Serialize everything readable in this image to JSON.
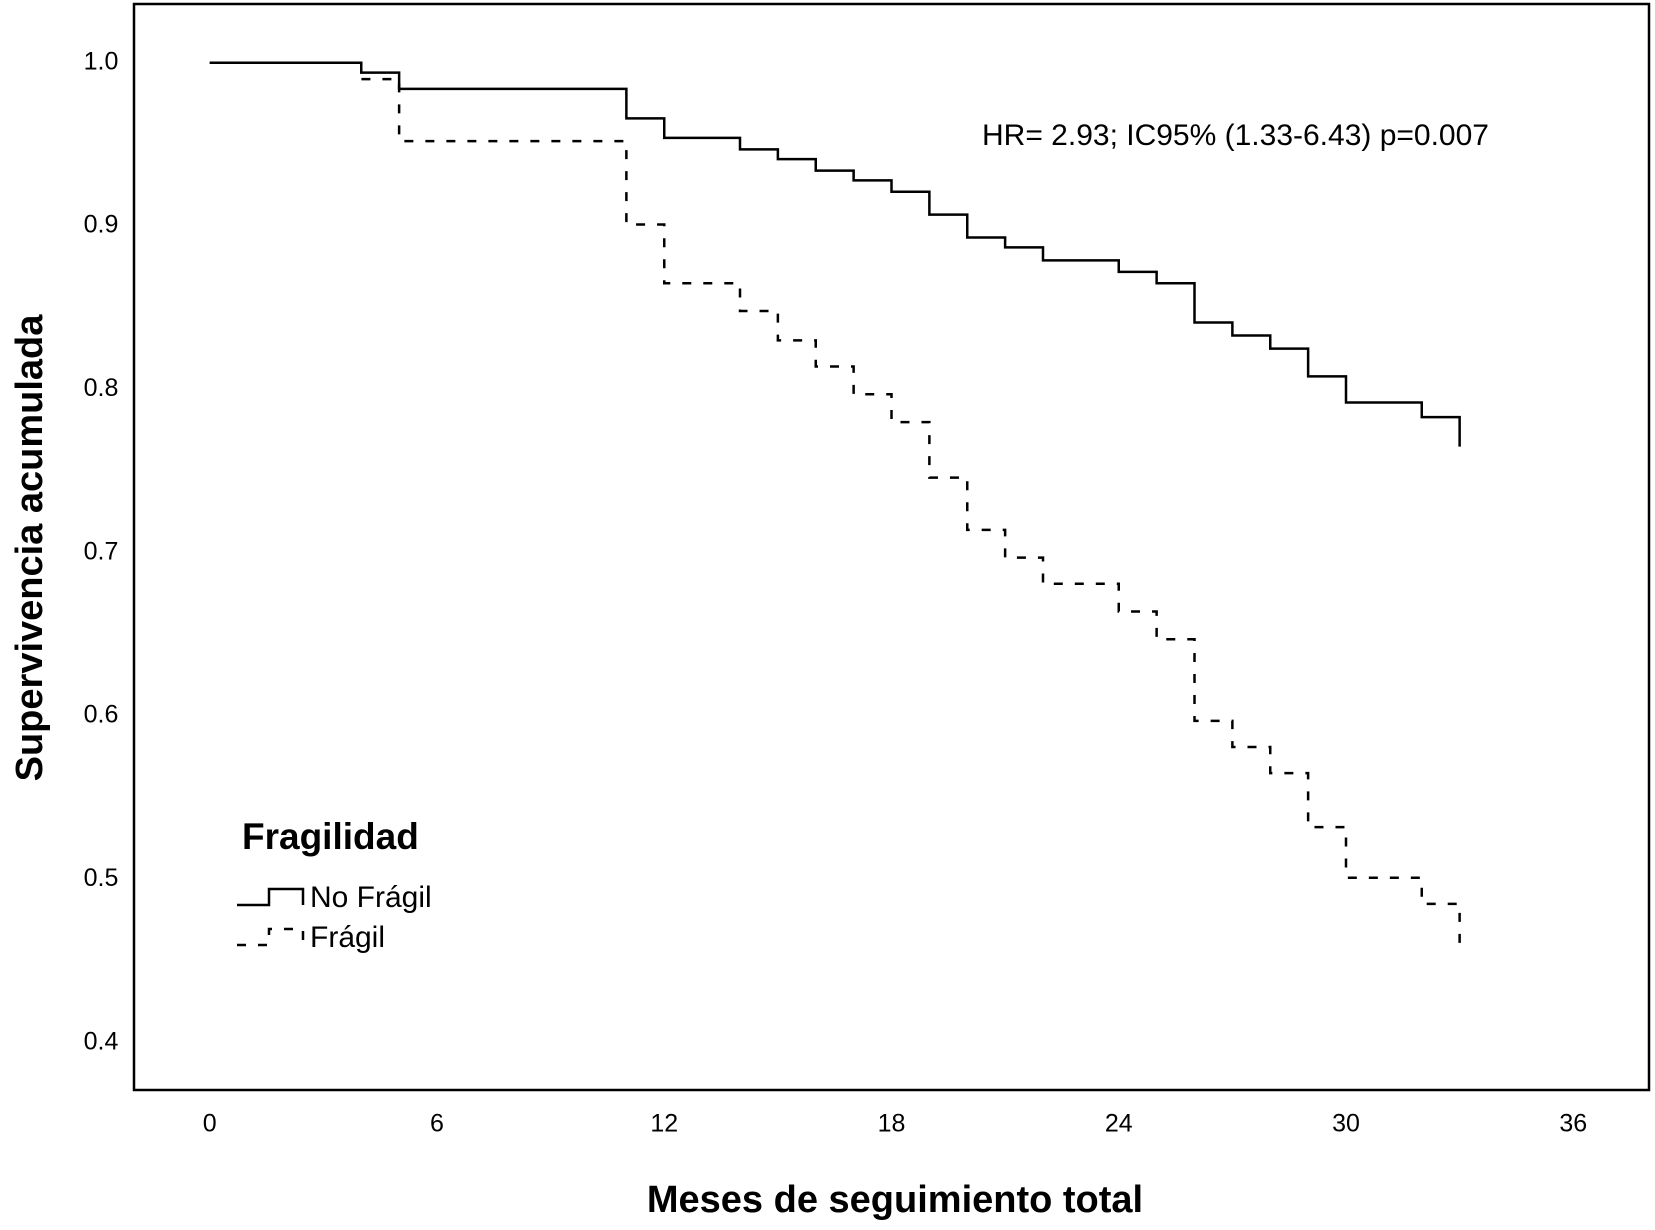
{
  "chart_data": {
    "type": "step",
    "x_label": "Meses de seguimiento total",
    "y_label": "Supervivencia acumulada",
    "annotation": "HR= 2.93; IC95% (1.33-6.43) p=0.007",
    "legend_title": "Fragilidad",
    "x": [
      0,
      4,
      5,
      11,
      12,
      14,
      15,
      16,
      17,
      18,
      19,
      20,
      21,
      22,
      24,
      25,
      26,
      27,
      28,
      29,
      30,
      32,
      33
    ],
    "series": [
      {
        "name": "No Frágil",
        "color": "#000000",
        "line_style": "solid",
        "values": [
          1.0,
          0.994,
          0.984,
          0.966,
          0.954,
          0.947,
          0.941,
          0.934,
          0.928,
          0.921,
          0.907,
          0.893,
          0.887,
          0.879,
          0.872,
          0.865,
          0.841,
          0.833,
          0.825,
          0.808,
          0.792,
          0.783,
          0.765
        ]
      },
      {
        "name": "Frágil",
        "color": "#000000",
        "line_style": "dashed",
        "values": [
          1.0,
          0.99,
          0.952,
          0.901,
          0.865,
          0.848,
          0.83,
          0.814,
          0.797,
          0.78,
          0.746,
          0.714,
          0.697,
          0.681,
          0.664,
          0.647,
          0.597,
          0.581,
          0.565,
          0.532,
          0.501,
          0.485,
          0.454
        ]
      }
    ],
    "xlim": [
      -2,
      38
    ],
    "ylim": [
      0.371,
      1.036
    ],
    "xticks": [
      0,
      6,
      12,
      18,
      24,
      30,
      36
    ],
    "yticks": [
      {
        "value": 1.0,
        "label": "1.0"
      },
      0.9,
      0.8,
      0.7,
      0.6,
      0.5,
      0.4
    ],
    "grid": false
  }
}
